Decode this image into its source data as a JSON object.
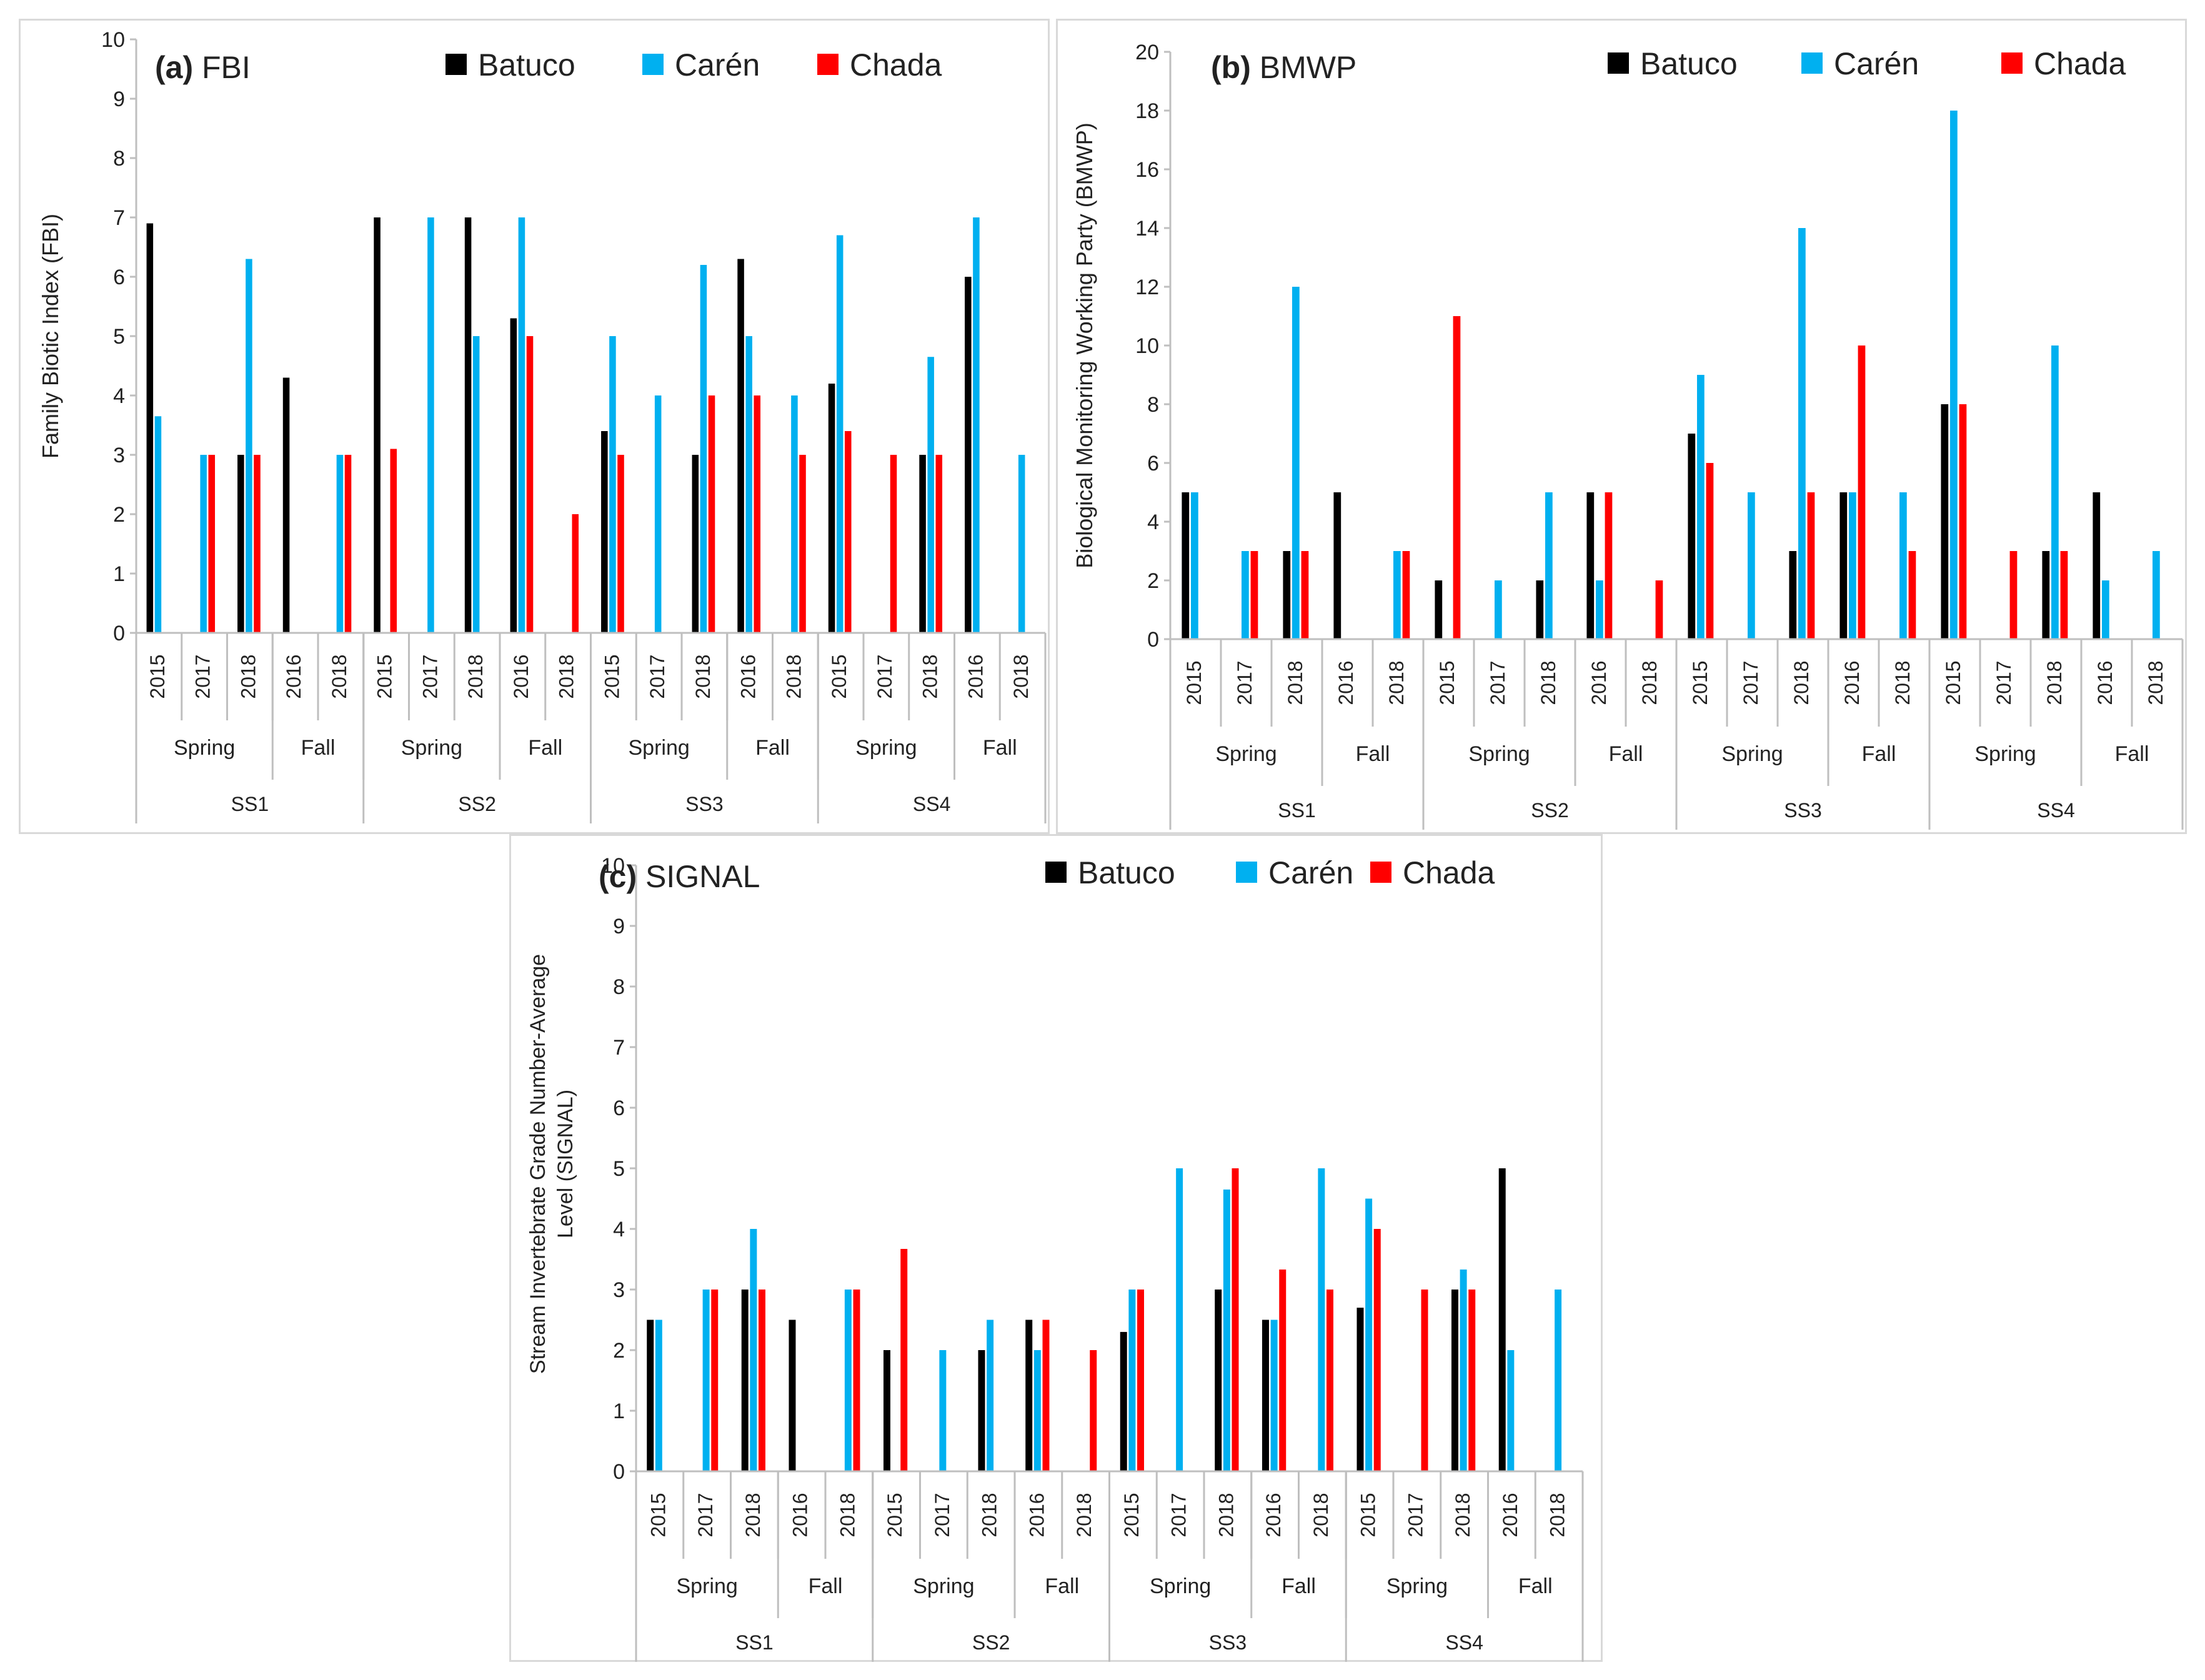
{
  "colors": {
    "Batuco": "#000000",
    "Carén": "#00b0f0",
    "Chada": "#ff0000",
    "axis": "#bfbfbf",
    "frame": "#d9d9d9"
  },
  "chart_data": [
    {
      "id": "a",
      "type": "bar",
      "title_bold": "(a)",
      "title_rest": " FBI",
      "ylabel": "Family Biotic Index (FBI)",
      "ylim": [
        0,
        10
      ],
      "yticks": [
        "0",
        "1",
        "2",
        "3",
        "4",
        "5",
        "6",
        "7",
        "8",
        "9",
        "10"
      ],
      "legend": [
        "Batuco",
        "Carén",
        "Chada"
      ],
      "categories": [
        "2015",
        "2017",
        "2018",
        "2016",
        "2018",
        "2015",
        "2017",
        "2018",
        "2016",
        "2018",
        "2015",
        "2017",
        "2018",
        "2016",
        "2018",
        "2015",
        "2017",
        "2018",
        "2016",
        "2018"
      ],
      "seasons": [
        {
          "label": "Spring",
          "span": 3
        },
        {
          "label": "Fall",
          "span": 2
        },
        {
          "label": "Spring",
          "span": 3
        },
        {
          "label": "Fall",
          "span": 2
        },
        {
          "label": "Spring",
          "span": 3
        },
        {
          "label": "Fall",
          "span": 2
        },
        {
          "label": "Spring",
          "span": 3
        },
        {
          "label": "Fall",
          "span": 2
        }
      ],
      "sites": [
        {
          "label": "SS1",
          "span": 5
        },
        {
          "label": "SS2",
          "span": 5
        },
        {
          "label": "SS3",
          "span": 5
        },
        {
          "label": "SS4",
          "span": 5
        }
      ],
      "series": [
        {
          "name": "Batuco",
          "values": [
            6.9,
            0,
            3.0,
            4.3,
            0,
            7.0,
            0,
            7.0,
            5.3,
            0,
            3.4,
            0,
            3.0,
            6.3,
            0,
            4.2,
            0,
            3.0,
            6.0,
            0
          ]
        },
        {
          "name": "Carén",
          "values": [
            3.65,
            3.0,
            6.3,
            0,
            3.0,
            0,
            7.0,
            5.0,
            7.0,
            0,
            5.0,
            4.0,
            6.2,
            5.0,
            4.0,
            6.7,
            0,
            4.65,
            7.0,
            3.0
          ]
        },
        {
          "name": "Chada",
          "values": [
            0,
            3.0,
            3.0,
            0,
            3.0,
            3.1,
            0,
            0,
            5.0,
            2.0,
            3.0,
            0,
            4.0,
            4.0,
            3.0,
            3.4,
            3.0,
            3.0,
            0,
            0
          ]
        }
      ]
    },
    {
      "id": "b",
      "type": "bar",
      "title_bold": "(b)",
      "title_rest": " BMWP",
      "ylabel": "Biological Monitoring Working Party (BMWP)",
      "ylim": [
        0,
        20
      ],
      "yticks": [
        "0",
        "2",
        "4",
        "6",
        "8",
        "10",
        "12",
        "14",
        "16",
        "18",
        "20"
      ],
      "legend": [
        "Batuco",
        "Carén",
        "Chada"
      ],
      "categories": [
        "2015",
        "2017",
        "2018",
        "2016",
        "2018",
        "2015",
        "2017",
        "2018",
        "2016",
        "2018",
        "2015",
        "2017",
        "2018",
        "2016",
        "2018",
        "2015",
        "2017",
        "2018",
        "2016",
        "2018"
      ],
      "seasons": [
        {
          "label": "Spring",
          "span": 3
        },
        {
          "label": "Fall",
          "span": 2
        },
        {
          "label": "Spring",
          "span": 3
        },
        {
          "label": "Fall",
          "span": 2
        },
        {
          "label": "Spring",
          "span": 3
        },
        {
          "label": "Fall",
          "span": 2
        },
        {
          "label": "Spring",
          "span": 3
        },
        {
          "label": "Fall",
          "span": 2
        }
      ],
      "sites": [
        {
          "label": "SS1",
          "span": 5
        },
        {
          "label": "SS2",
          "span": 5
        },
        {
          "label": "SS3",
          "span": 5
        },
        {
          "label": "SS4",
          "span": 5
        }
      ],
      "series": [
        {
          "name": "Batuco",
          "values": [
            5,
            0,
            3,
            5,
            0,
            2,
            0,
            2,
            5,
            0,
            7,
            0,
            3,
            5,
            0,
            8,
            0,
            3,
            5,
            0
          ]
        },
        {
          "name": "Carén",
          "values": [
            5,
            3,
            12,
            0,
            3,
            0,
            2,
            5,
            2,
            0,
            9,
            5,
            14,
            5,
            5,
            18,
            0,
            10,
            2,
            3
          ]
        },
        {
          "name": "Chada",
          "values": [
            0,
            3,
            3,
            0,
            3,
            11,
            0,
            0,
            5,
            2,
            6,
            0,
            5,
            10,
            3,
            8,
            3,
            3,
            0,
            0
          ]
        }
      ]
    },
    {
      "id": "c",
      "type": "bar",
      "title_bold": "(c)",
      "title_rest": " SIGNAL",
      "ylabel": "Stream Invertebrate Grade Number-Average Level (SIGNAL)",
      "ylabel_line1": "Stream Invertebrate Grade Number-Average",
      "ylabel_line2": "Level (SIGNAL)",
      "ylim": [
        0,
        10
      ],
      "yticks": [
        "0",
        "1",
        "2",
        "3",
        "4",
        "5",
        "6",
        "7",
        "8",
        "9",
        "10"
      ],
      "legend": [
        "Batuco",
        "Carén",
        "Chada"
      ],
      "categories": [
        "2015",
        "2017",
        "2018",
        "2016",
        "2018",
        "2015",
        "2017",
        "2018",
        "2016",
        "2018",
        "2015",
        "2017",
        "2018",
        "2016",
        "2018",
        "2015",
        "2017",
        "2018",
        "2016",
        "2018"
      ],
      "seasons": [
        {
          "label": "Spring",
          "span": 3
        },
        {
          "label": "Fall",
          "span": 2
        },
        {
          "label": "Spring",
          "span": 3
        },
        {
          "label": "Fall",
          "span": 2
        },
        {
          "label": "Spring",
          "span": 3
        },
        {
          "label": "Fall",
          "span": 2
        },
        {
          "label": "Spring",
          "span": 3
        },
        {
          "label": "Fall",
          "span": 2
        }
      ],
      "sites": [
        {
          "label": "SS1",
          "span": 5
        },
        {
          "label": "SS2",
          "span": 5
        },
        {
          "label": "SS3",
          "span": 5
        },
        {
          "label": "SS4",
          "span": 5
        }
      ],
      "series": [
        {
          "name": "Batuco",
          "values": [
            2.5,
            0,
            3.0,
            2.5,
            0,
            2.0,
            0,
            2.0,
            2.5,
            0,
            2.3,
            0,
            3.0,
            2.5,
            0,
            2.7,
            0,
            3.0,
            5.0,
            0
          ]
        },
        {
          "name": "Carén",
          "values": [
            2.5,
            3.0,
            4.0,
            0,
            3.0,
            0,
            2.0,
            2.5,
            2.0,
            0,
            3.0,
            5.0,
            4.65,
            2.5,
            5.0,
            4.5,
            0,
            3.33,
            2.0,
            3.0
          ]
        },
        {
          "name": "Chada",
          "values": [
            0,
            3.0,
            3.0,
            0,
            3.0,
            3.67,
            0,
            0,
            2.5,
            2.0,
            3.0,
            0,
            5.0,
            3.33,
            3.0,
            4.0,
            3.0,
            3.0,
            0,
            0
          ]
        }
      ]
    }
  ]
}
